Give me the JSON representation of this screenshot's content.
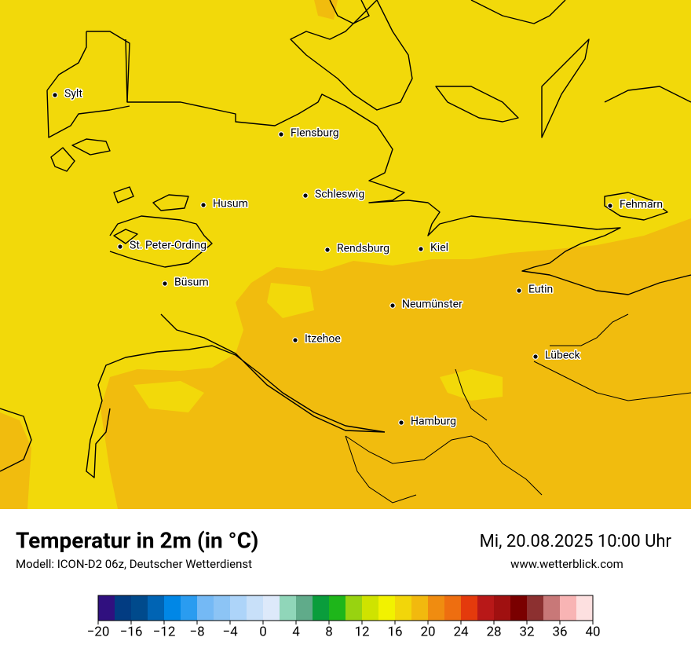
{
  "header": {
    "title": "Temperatur in 2m (in °C)",
    "subtitle": "Modell: ICON-D2 06z, Deutscher Wetterdienst",
    "datetime": "Mi, 20.08.2025 10:00 Uhr",
    "website": "www.wetterblick.com"
  },
  "cities": [
    "Sylt",
    "Flensburg",
    "Schleswig",
    "Husum",
    "Fehmarn",
    "St. Peter-Ording",
    "Rendsburg",
    "Kiel",
    "Büsum",
    "Eutin",
    "Neumünster",
    "Itzehoe",
    "Lübeck",
    "Hamburg"
  ],
  "colorbar": {
    "lim": [
      -20,
      40
    ],
    "colors": [
      "#30107f",
      "#023c82",
      "#004a8c",
      "#0064b4",
      "#0087e6",
      "#2a9cf0",
      "#74b9f5",
      "#8cc4f5",
      "#add4f9",
      "#c8e0f9",
      "#dde9fa",
      "#90d6b9",
      "#60ab8a",
      "#0a9d3c",
      "#1eb61a",
      "#98d310",
      "#cfe300",
      "#f2f200",
      "#f2d60a",
      "#f2b90e",
      "#f08c10",
      "#ee6e10",
      "#e43a0c",
      "#b81818",
      "#a01010",
      "#7a0000",
      "#8c3030",
      "#c87878",
      "#f8b4b4",
      "#fde0e0"
    ],
    "ticks": [
      {
        "value": -20,
        "label": "−20"
      },
      {
        "value": -16,
        "label": "−16"
      },
      {
        "value": -12,
        "label": "−12"
      },
      {
        "value": -8,
        "label": "−8"
      },
      {
        "value": -4,
        "label": "−4"
      },
      0,
      4,
      8,
      12,
      16,
      20,
      24,
      28,
      32,
      36,
      40
    ]
  }
}
